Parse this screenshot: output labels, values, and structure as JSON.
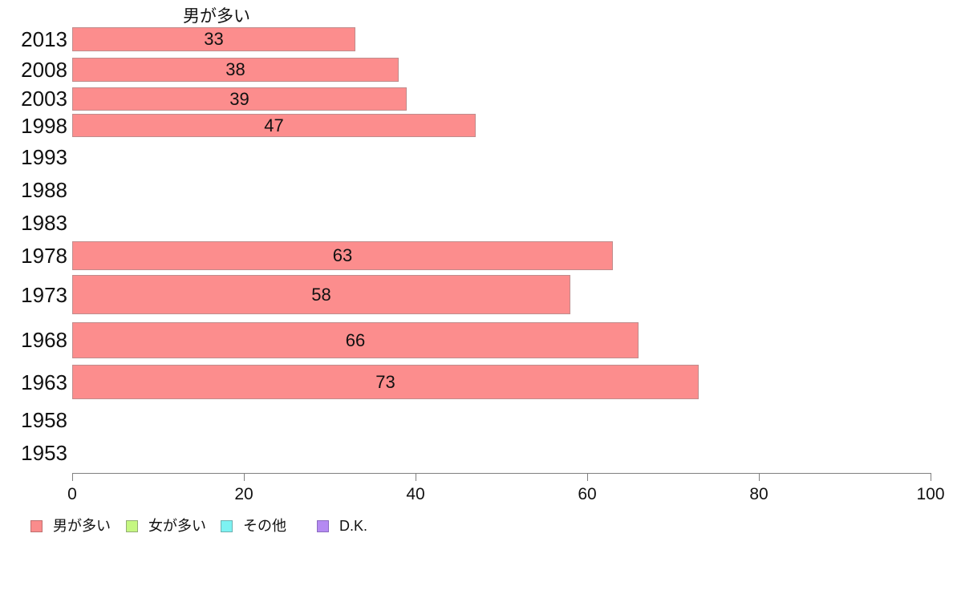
{
  "chart_data": {
    "type": "bar",
    "orientation": "horizontal",
    "title": "男が多い",
    "categories": [
      "2013",
      "2008",
      "2003",
      "1998",
      "1993",
      "1988",
      "1983",
      "1978",
      "1973",
      "1968",
      "1963",
      "1958",
      "1953"
    ],
    "values": [
      33,
      38,
      39,
      47,
      null,
      null,
      null,
      63,
      58,
      66,
      73,
      null,
      null
    ],
    "xlabel": "",
    "ylabel": "",
    "xlim": [
      0,
      100
    ],
    "x_ticks": [
      0,
      20,
      40,
      60,
      80,
      100
    ],
    "grid": false,
    "value_labels_shown": true,
    "bar_color": "#fc8d8d",
    "bar_border_color": "#c08c8c",
    "axis_color": "#808080",
    "text_color": "#111111",
    "legend_position": "bottom-left",
    "legend": [
      {
        "label": "男が多い",
        "color": "#fa8c8c",
        "border": "#bf7070"
      },
      {
        "label": "女が多い",
        "color": "#c5f781",
        "border": "#93ad75"
      },
      {
        "label": "その他",
        "color": "#7df2f2",
        "border": "#6fb0b0"
      },
      {
        "label": "D.K.",
        "color": "#b58af2",
        "border": "#8b6cc0"
      }
    ]
  }
}
